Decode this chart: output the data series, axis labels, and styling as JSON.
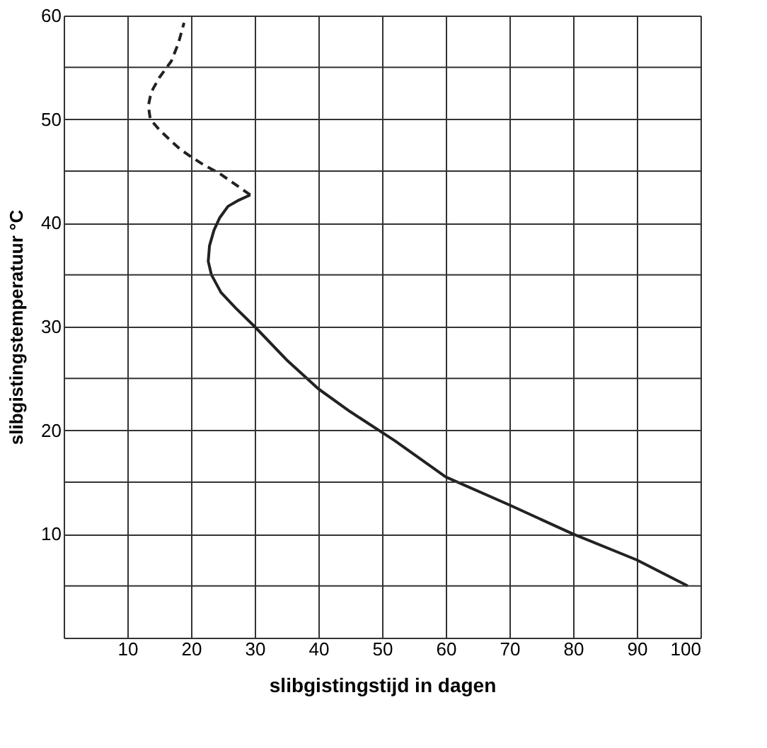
{
  "chart_data": {
    "type": "line",
    "xlabel": "slibgistingstijd in dagen",
    "ylabel": "slibgistingstemperatuur °C",
    "xlim": [
      0,
      100
    ],
    "ylim": [
      0,
      60
    ],
    "xticks": [
      10,
      20,
      30,
      40,
      50,
      60,
      70,
      80,
      90,
      100
    ],
    "yticks": [
      {
        "value": 5,
        "label": null
      },
      10,
      {
        "value": 15,
        "label": null
      },
      20,
      {
        "value": 25,
        "label": null
      },
      30,
      {
        "value": 35,
        "label": null
      },
      40,
      {
        "value": 45,
        "label": null
      },
      50,
      {
        "value": 55,
        "label": null
      },
      60
    ],
    "grid": true,
    "marker": "none",
    "series": [
      {
        "color": "#222222",
        "line_style": "solid",
        "x": [
          98,
          90,
          80,
          70,
          60,
          52,
          45,
          40,
          35,
          30,
          27,
          24.7,
          23.2,
          22.7,
          22.9,
          23.6,
          24.5,
          25.8,
          27.5,
          29.3
        ],
        "values": [
          5,
          7.5,
          10,
          12.8,
          15.5,
          19,
          21.8,
          24,
          26.8,
          30,
          31.8,
          33.3,
          35,
          36.3,
          37.8,
          39.3,
          40.5,
          41.6,
          42.2,
          42.7
        ]
      },
      {
        "color": "#222222",
        "line_style": "dashed",
        "x": [
          29.3,
          27,
          24.4,
          22,
          20.2,
          18.3,
          16.7,
          15,
          13.6,
          13.3,
          13.6,
          14,
          15,
          16.9,
          18,
          18.9
        ],
        "values": [
          42.7,
          43.7,
          44.8,
          45.6,
          46.3,
          47.1,
          48,
          49,
          50,
          51.3,
          52.2,
          52.9,
          54,
          55.6,
          57.3,
          59.3
        ]
      }
    ]
  }
}
